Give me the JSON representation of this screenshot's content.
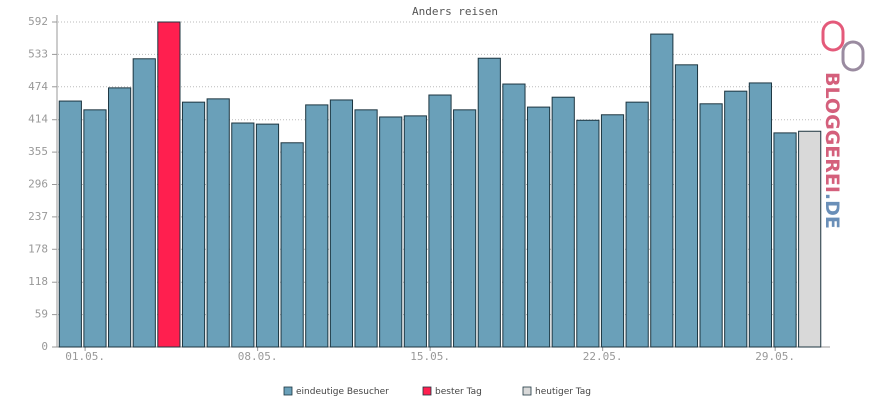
{
  "chart_data": {
    "type": "bar",
    "title": "Anders reisen",
    "categories": [
      "01.05.",
      null,
      null,
      null,
      null,
      null,
      null,
      "08.05.",
      null,
      null,
      null,
      null,
      null,
      null,
      "15.05.",
      null,
      null,
      null,
      null,
      null,
      null,
      "22.05.",
      null,
      null,
      null,
      null,
      null,
      null,
      "29.05.",
      null,
      null
    ],
    "series": [
      {
        "name": "eindeutige Besucher",
        "color": "#6aa0b9",
        "values": [
          448,
          432,
          472,
          525,
          null,
          446,
          452,
          408,
          406,
          372,
          441,
          450,
          432,
          419,
          421,
          459,
          432,
          526,
          479,
          437,
          455,
          413,
          423,
          446,
          570,
          514,
          443,
          466,
          481,
          390,
          null
        ]
      },
      {
        "name": "bester Tag",
        "color": "#ff1f4f",
        "values": [
          null,
          null,
          null,
          null,
          592,
          null,
          null,
          null,
          null,
          null,
          null,
          null,
          null,
          null,
          null,
          null,
          null,
          null,
          null,
          null,
          null,
          null,
          null,
          null,
          null,
          null,
          null,
          null,
          null,
          null,
          null
        ]
      },
      {
        "name": "heutiger Tag",
        "color": "#d9d9d9",
        "values": [
          null,
          null,
          null,
          null,
          null,
          null,
          null,
          null,
          null,
          null,
          null,
          null,
          null,
          null,
          null,
          null,
          null,
          null,
          null,
          null,
          null,
          null,
          null,
          null,
          null,
          null,
          null,
          null,
          null,
          null,
          393
        ]
      }
    ],
    "ylim": [
      0,
      592
    ],
    "yticks": [
      0,
      59,
      118,
      178,
      237,
      296,
      355,
      414,
      474,
      533,
      592
    ],
    "grid": true,
    "watermark": [
      "BLOGGEREI",
      ".DE"
    ]
  }
}
